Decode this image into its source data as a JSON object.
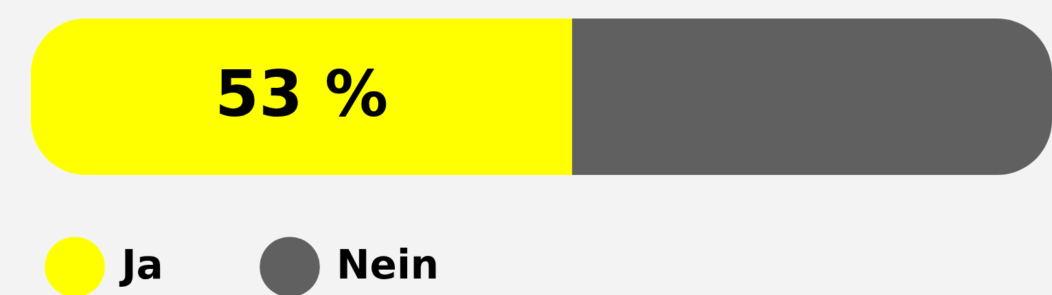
{
  "chart_data": {
    "type": "bar",
    "stacked": true,
    "orientation": "horizontal",
    "categories": [
      null
    ],
    "series": [
      {
        "name": "Ja",
        "color": "#ffff00",
        "values": [
          53
        ],
        "value_labels": [
          "53 %"
        ]
      },
      {
        "name": "Nein",
        "color": "#606060",
        "values": [
          47
        ]
      }
    ],
    "xlim": [
      0,
      100
    ],
    "tick_labels": false,
    "legend": "bottom left"
  }
}
